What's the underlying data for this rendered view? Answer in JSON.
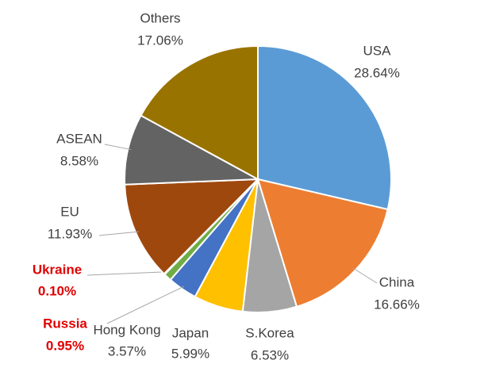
{
  "chart_data": {
    "type": "pie",
    "categories": [
      "USA",
      "China",
      "S.Korea",
      "Japan",
      "Hong Kong",
      "Russia",
      "Ukraine",
      "EU",
      "ASEAN",
      "Others"
    ],
    "values": [
      28.64,
      16.66,
      6.53,
      5.99,
      3.57,
      0.95,
      0.1,
      11.93,
      8.58,
      17.06
    ],
    "value_labels": [
      "28.64%",
      "16.66%",
      "6.53%",
      "5.99%",
      "3.57%",
      "0.95%",
      "0.10%",
      "11.93%",
      "8.58%",
      "17.06%"
    ],
    "colors": [
      "#5b9bd5",
      "#ed7d31",
      "#a5a5a5",
      "#ffc000",
      "#4472c4",
      "#70ad47",
      "#264478",
      "#9e480e",
      "#636363",
      "#997300"
    ],
    "label_colors": [
      "#404040",
      "#404040",
      "#404040",
      "#404040",
      "#404040",
      "#e00000",
      "#e00000",
      "#404040",
      "#404040",
      "#404040"
    ]
  }
}
